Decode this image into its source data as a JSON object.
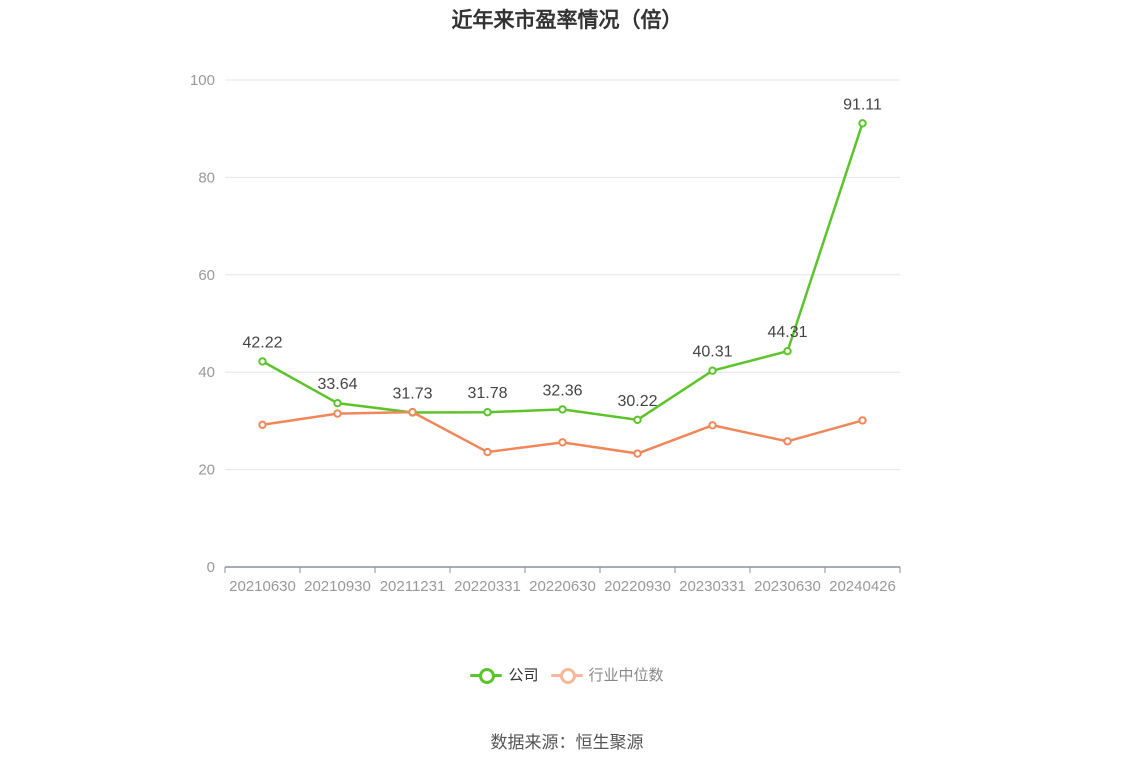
{
  "title": "近年来市盈率情况（倍）",
  "source": "数据来源：恒生聚源",
  "legend": [
    {
      "label": "公司"
    },
    {
      "label": "行业中位数"
    }
  ],
  "colors": {
    "company": "#5cc42a",
    "industry": "#f0875a",
    "industry_legend": "#f5b89c",
    "grid": "#e4e6ee",
    "axis": "#8a8f9c",
    "tick": "#999999",
    "label": "#444444"
  },
  "chart_data": {
    "type": "line",
    "title": "近年来市盈率情况（倍）",
    "categories": [
      "20210630",
      "20210930",
      "20211231",
      "20220331",
      "20220630",
      "20220930",
      "20230331",
      "20230630",
      "20240426"
    ],
    "ylim": [
      0,
      100
    ],
    "yticks": [
      0,
      20,
      40,
      60,
      80,
      100
    ],
    "grid": true,
    "legend_position": "bottom",
    "series": [
      {
        "name": "公司",
        "values": [
          42.22,
          33.64,
          31.73,
          31.78,
          32.36,
          30.22,
          40.31,
          44.31,
          91.11
        ],
        "labels": [
          "42.22",
          "33.64",
          "31.73",
          "31.78",
          "32.36",
          "30.22",
          "40.31",
          "44.31",
          "91.11"
        ]
      },
      {
        "name": "行业中位数",
        "values": [
          29.2,
          31.5,
          31.8,
          23.6,
          25.6,
          23.3,
          29.1,
          25.8,
          30.1
        ]
      }
    ]
  }
}
